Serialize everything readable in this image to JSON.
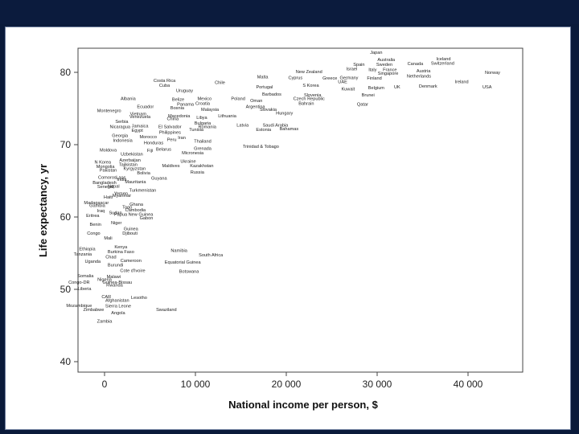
{
  "chart_data": {
    "type": "scatter",
    "title": "",
    "xlabel": "National income per person, $",
    "ylabel": "Life expectancy, yr",
    "xlim": [
      -3000,
      46000
    ],
    "ylim": [
      38.5,
      83.5
    ],
    "xticks": [
      0,
      10000,
      20000,
      30000,
      40000
    ],
    "xtick_labels": [
      "0",
      "10 000",
      "20 000",
      "30 000",
      "40 000"
    ],
    "yticks": [
      40,
      50,
      60,
      70,
      80
    ],
    "ytick_labels": [
      "40",
      "50",
      "60",
      "70",
      "80"
    ],
    "grid": false,
    "points": [
      {
        "label": "Japan",
        "x": 29900,
        "y": 82.8
      },
      {
        "label": "Australia",
        "x": 31000,
        "y": 81.8
      },
      {
        "label": "Iceland",
        "x": 37300,
        "y": 81.9
      },
      {
        "label": "Switzerland",
        "x": 37200,
        "y": 81.3
      },
      {
        "label": "Canada",
        "x": 34200,
        "y": 81.2
      },
      {
        "label": "Spain",
        "x": 28000,
        "y": 81.1
      },
      {
        "label": "Sweden",
        "x": 30800,
        "y": 81.1
      },
      {
        "label": "Israel",
        "x": 27200,
        "y": 80.5
      },
      {
        "label": "Italy",
        "x": 29500,
        "y": 80.4
      },
      {
        "label": "France",
        "x": 31400,
        "y": 80.4
      },
      {
        "label": "Austria",
        "x": 35100,
        "y": 80.2
      },
      {
        "label": "Norway",
        "x": 42700,
        "y": 80.0
      },
      {
        "label": "New Zealand",
        "x": 22500,
        "y": 80.1
      },
      {
        "label": "Singapore",
        "x": 31200,
        "y": 79.9
      },
      {
        "label": "Netherlands",
        "x": 34600,
        "y": 79.5
      },
      {
        "label": "Malta",
        "x": 17400,
        "y": 79.4
      },
      {
        "label": "Cyprus",
        "x": 21000,
        "y": 79.3
      },
      {
        "label": "Greece",
        "x": 24800,
        "y": 79.2
      },
      {
        "label": "Germany",
        "x": 26900,
        "y": 79.3
      },
      {
        "label": "Finland",
        "x": 29700,
        "y": 79.2
      },
      {
        "label": "Costa Rica",
        "x": 6600,
        "y": 78.9
      },
      {
        "label": "Chile",
        "x": 12700,
        "y": 78.6
      },
      {
        "label": "UAE",
        "x": 26200,
        "y": 78.7
      },
      {
        "label": "Ireland",
        "x": 39300,
        "y": 78.7
      },
      {
        "label": "Cuba",
        "x": 6600,
        "y": 78.2
      },
      {
        "label": "Portugal",
        "x": 17600,
        "y": 78.0
      },
      {
        "label": "S Korea",
        "x": 22700,
        "y": 78.2
      },
      {
        "label": "Kuwait",
        "x": 26800,
        "y": 77.7
      },
      {
        "label": "Belgium",
        "x": 29900,
        "y": 77.9
      },
      {
        "label": "UK",
        "x": 32200,
        "y": 78.0
      },
      {
        "label": "Denmark",
        "x": 35600,
        "y": 78.1
      },
      {
        "label": "USA",
        "x": 42100,
        "y": 78.0
      },
      {
        "label": "Uruguay",
        "x": 8800,
        "y": 77.5
      },
      {
        "label": "Barbados",
        "x": 18400,
        "y": 77.0
      },
      {
        "label": "Slovenia",
        "x": 22900,
        "y": 76.9
      },
      {
        "label": "Brunei",
        "x": 29000,
        "y": 76.9
      },
      {
        "label": "Albania",
        "x": 2600,
        "y": 76.4
      },
      {
        "label": "Mexico",
        "x": 11000,
        "y": 76.4
      },
      {
        "label": "Poland",
        "x": 14700,
        "y": 76.4
      },
      {
        "label": "Belize",
        "x": 8100,
        "y": 76.3
      },
      {
        "label": "Czech Republic",
        "x": 22500,
        "y": 76.4
      },
      {
        "label": "Oman",
        "x": 16700,
        "y": 76.1
      },
      {
        "label": "Croatia",
        "x": 10800,
        "y": 75.7
      },
      {
        "label": "Bahrain",
        "x": 22200,
        "y": 75.7
      },
      {
        "label": "Panama",
        "x": 8900,
        "y": 75.6
      },
      {
        "label": "Qatar",
        "x": 28400,
        "y": 75.6
      },
      {
        "label": "Ecuador",
        "x": 4500,
        "y": 75.3
      },
      {
        "label": "Bosnia",
        "x": 8000,
        "y": 75.1
      },
      {
        "label": "Argentina",
        "x": 16600,
        "y": 75.3
      },
      {
        "label": "Malaysia",
        "x": 11600,
        "y": 74.9
      },
      {
        "label": "Slovakia",
        "x": 18000,
        "y": 74.9
      },
      {
        "label": "Montenegro",
        "x": 500,
        "y": 74.7
      },
      {
        "label": "Vietnam",
        "x": 3700,
        "y": 74.3
      },
      {
        "label": "Hungary",
        "x": 19800,
        "y": 74.4
      },
      {
        "label": "Venezuela",
        "x": 3900,
        "y": 73.9
      },
      {
        "label": "Macedonia",
        "x": 8200,
        "y": 74.0
      },
      {
        "label": "Libya",
        "x": 10700,
        "y": 73.8
      },
      {
        "label": "Lithuania",
        "x": 13500,
        "y": 74.0
      },
      {
        "label": "China",
        "x": 7500,
        "y": 73.6
      },
      {
        "label": "Serbia",
        "x": 1900,
        "y": 73.2
      },
      {
        "label": "Bulgaria",
        "x": 10800,
        "y": 73.0
      },
      {
        "label": "Jamaica",
        "x": 3900,
        "y": 72.6
      },
      {
        "label": "El Salvador",
        "x": 7200,
        "y": 72.5
      },
      {
        "label": "Romania",
        "x": 11300,
        "y": 72.5
      },
      {
        "label": "Latvia",
        "x": 15200,
        "y": 72.7
      },
      {
        "label": "Saudi Arabia",
        "x": 18800,
        "y": 72.7
      },
      {
        "label": "Nicaragua",
        "x": 1700,
        "y": 72.5
      },
      {
        "label": "Egypt",
        "x": 3600,
        "y": 72.0
      },
      {
        "label": "Tunisia",
        "x": 10100,
        "y": 72.1
      },
      {
        "label": "Estonia",
        "x": 17500,
        "y": 72.1
      },
      {
        "label": "Bahamas",
        "x": 20300,
        "y": 72.2
      },
      {
        "label": "Philippines",
        "x": 7200,
        "y": 71.7
      },
      {
        "label": "Georgia",
        "x": 1700,
        "y": 71.3
      },
      {
        "label": "Morocco",
        "x": 4800,
        "y": 71.1
      },
      {
        "label": "Iran",
        "x": 8500,
        "y": 71.0
      },
      {
        "label": "Indonesia",
        "x": 2000,
        "y": 70.6
      },
      {
        "label": "Peru",
        "x": 7400,
        "y": 70.7
      },
      {
        "label": "Thailand",
        "x": 10800,
        "y": 70.5
      },
      {
        "label": "Honduras",
        "x": 5400,
        "y": 70.3
      },
      {
        "label": "Trinidad & Tobago",
        "x": 17200,
        "y": 69.8
      },
      {
        "label": "Fiji",
        "x": 5000,
        "y": 69.2
      },
      {
        "label": "Belarus",
        "x": 6500,
        "y": 69.4
      },
      {
        "label": "Grenada",
        "x": 10800,
        "y": 69.5
      },
      {
        "label": "Moldova",
        "x": 400,
        "y": 69.3
      },
      {
        "label": "Micronesia",
        "x": 9700,
        "y": 68.9
      },
      {
        "label": "Uzbekistan",
        "x": 3000,
        "y": 68.7
      },
      {
        "label": "Azerbaijan",
        "x": 2800,
        "y": 67.9
      },
      {
        "label": "N Korea",
        "x": -200,
        "y": 67.6
      },
      {
        "label": "Ukraine",
        "x": 9200,
        "y": 67.7
      },
      {
        "label": "Tajikistan",
        "x": 2600,
        "y": 67.3
      },
      {
        "label": "Maldives",
        "x": 7300,
        "y": 67.1
      },
      {
        "label": "Kazakhstan",
        "x": 10700,
        "y": 67.1
      },
      {
        "label": "Mongolia",
        "x": 100,
        "y": 67.0
      },
      {
        "label": "Kyrgyzstan",
        "x": 3300,
        "y": 66.7
      },
      {
        "label": "Pakistan",
        "x": 400,
        "y": 66.5
      },
      {
        "label": "Russia",
        "x": 10200,
        "y": 66.2
      },
      {
        "label": "Bolivia",
        "x": 4300,
        "y": 66.1
      },
      {
        "label": "Comoros",
        "x": 300,
        "y": 65.5
      },
      {
        "label": "Laos",
        "x": 1800,
        "y": 65.5
      },
      {
        "label": "Guyana",
        "x": 6000,
        "y": 65.4
      },
      {
        "label": "India",
        "x": 1900,
        "y": 65.2
      },
      {
        "label": "Mauritania",
        "x": 3400,
        "y": 64.9
      },
      {
        "label": "Bangladesh",
        "x": 0,
        "y": 64.8
      },
      {
        "label": "Nepal",
        "x": 1000,
        "y": 64.3
      },
      {
        "label": "Senegal",
        "x": 100,
        "y": 64.2
      },
      {
        "label": "Turkmenistan",
        "x": 4200,
        "y": 63.7
      },
      {
        "label": "Yemen",
        "x": 1800,
        "y": 63.3
      },
      {
        "label": "Haiti",
        "x": 400,
        "y": 62.8
      },
      {
        "label": "Myanmar",
        "x": 1900,
        "y": 63.0
      },
      {
        "label": "Madagascar",
        "x": -900,
        "y": 62.0
      },
      {
        "label": "Ghana",
        "x": 3500,
        "y": 61.8
      },
      {
        "label": "Gambia",
        "x": -800,
        "y": 61.6
      },
      {
        "label": "Togo",
        "x": 2500,
        "y": 61.4
      },
      {
        "label": "Cambodia",
        "x": 3400,
        "y": 61.0
      },
      {
        "label": "Iraq",
        "x": -400,
        "y": 60.9
      },
      {
        "label": "Sudan",
        "x": 1200,
        "y": 60.6
      },
      {
        "label": "Papua New Guinea",
        "x": 3200,
        "y": 60.4
      },
      {
        "label": "Eritrea",
        "x": -1300,
        "y": 60.2
      },
      {
        "label": "Gabon",
        "x": 4600,
        "y": 59.9
      },
      {
        "label": "Benin",
        "x": -1000,
        "y": 59.0
      },
      {
        "label": "Niger",
        "x": 1300,
        "y": 59.2
      },
      {
        "label": "Guinea",
        "x": 2900,
        "y": 58.4
      },
      {
        "label": "Congo",
        "x": -1200,
        "y": 57.8
      },
      {
        "label": "Djibouti",
        "x": 2800,
        "y": 57.8
      },
      {
        "label": "Mali",
        "x": 400,
        "y": 57.1
      },
      {
        "label": "Kenya",
        "x": 1800,
        "y": 55.9
      },
      {
        "label": "Ethiopia",
        "x": -1900,
        "y": 55.6
      },
      {
        "label": "Namibia",
        "x": 8200,
        "y": 55.4
      },
      {
        "label": "Burkina Faso",
        "x": 1800,
        "y": 55.2
      },
      {
        "label": "Tanzania",
        "x": -2400,
        "y": 54.9
      },
      {
        "label": "South Africa",
        "x": 11700,
        "y": 54.8
      },
      {
        "label": "Chad",
        "x": 700,
        "y": 54.5
      },
      {
        "label": "Cameroon",
        "x": 2900,
        "y": 54.0
      },
      {
        "label": "Uganda",
        "x": -1300,
        "y": 53.9
      },
      {
        "label": "Equatorial Guinea",
        "x": 8600,
        "y": 53.8
      },
      {
        "label": "Burundi",
        "x": 1200,
        "y": 53.4
      },
      {
        "label": "Cote d'Ivoire",
        "x": 3100,
        "y": 52.6
      },
      {
        "label": "Botswana",
        "x": 9300,
        "y": 52.5
      },
      {
        "label": "Somalia",
        "x": -2100,
        "y": 51.9
      },
      {
        "label": "Malawi",
        "x": 1000,
        "y": 51.8
      },
      {
        "label": "Nigeria",
        "x": 0,
        "y": 51.4
      },
      {
        "label": "Congo-DR",
        "x": -2800,
        "y": 51.0
      },
      {
        "label": "Guinea-Bissau",
        "x": 1400,
        "y": 51.0
      },
      {
        "label": "Rwanda",
        "x": 1100,
        "y": 50.6
      },
      {
        "label": "Liberia",
        "x": -2200,
        "y": 50.1
      },
      {
        "label": "CAR",
        "x": 200,
        "y": 49.0
      },
      {
        "label": "Lesotho",
        "x": 3800,
        "y": 48.9
      },
      {
        "label": "Afghanistan",
        "x": 1400,
        "y": 48.5
      },
      {
        "label": "Mozambique",
        "x": -2800,
        "y": 47.8
      },
      {
        "label": "Sierra Leone",
        "x": 1500,
        "y": 47.7
      },
      {
        "label": "Swaziland",
        "x": 6800,
        "y": 47.2
      },
      {
        "label": "Zimbabwe",
        "x": -1200,
        "y": 47.2
      },
      {
        "label": "Angola",
        "x": 1500,
        "y": 46.8
      },
      {
        "label": "Zambia",
        "x": 0,
        "y": 45.6
      }
    ]
  }
}
